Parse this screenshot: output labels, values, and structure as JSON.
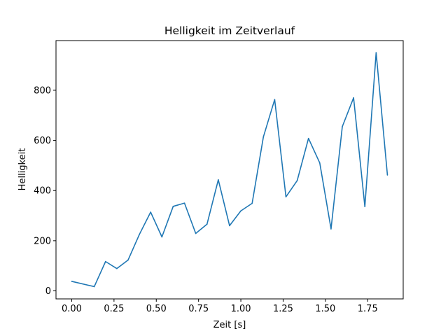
{
  "chart_data": {
    "type": "line",
    "title": "Helligkeit im Zeitverlauf",
    "xlabel": "Zeit [s]",
    "ylabel": "Helligkeit",
    "xlim": [
      -0.093,
      1.96
    ],
    "ylim": [
      -32,
      998
    ],
    "xticks": [
      0.0,
      0.25,
      0.5,
      0.75,
      1.0,
      1.25,
      1.5,
      1.75
    ],
    "xtick_labels": [
      "0.00",
      "0.25",
      "0.50",
      "0.75",
      "1.00",
      "1.25",
      "1.50",
      "1.75"
    ],
    "yticks": [
      0,
      200,
      400,
      600,
      800
    ],
    "ytick_labels": [
      "0",
      "200",
      "400",
      "600",
      "800"
    ],
    "grid": false,
    "line_color": "#1f77b4",
    "series": [
      {
        "x": [
          0.0,
          0.1333,
          0.2,
          0.2667,
          0.3333,
          0.4,
          0.4667,
          0.5333,
          0.6,
          0.6667,
          0.7333,
          0.8,
          0.8667,
          0.9333,
          1.0,
          1.0667,
          1.1333,
          1.2,
          1.2667,
          1.3333,
          1.4,
          1.4667,
          1.5333,
          1.6,
          1.6667,
          1.7333,
          1.8,
          1.8667
        ],
        "y": [
          38,
          17,
          117,
          89,
          123,
          225,
          314,
          215,
          337,
          350,
          229,
          266,
          443,
          260,
          319,
          349,
          614,
          763,
          375,
          440,
          608,
          510,
          247,
          655,
          770,
          336,
          950,
          462
        ]
      }
    ]
  }
}
